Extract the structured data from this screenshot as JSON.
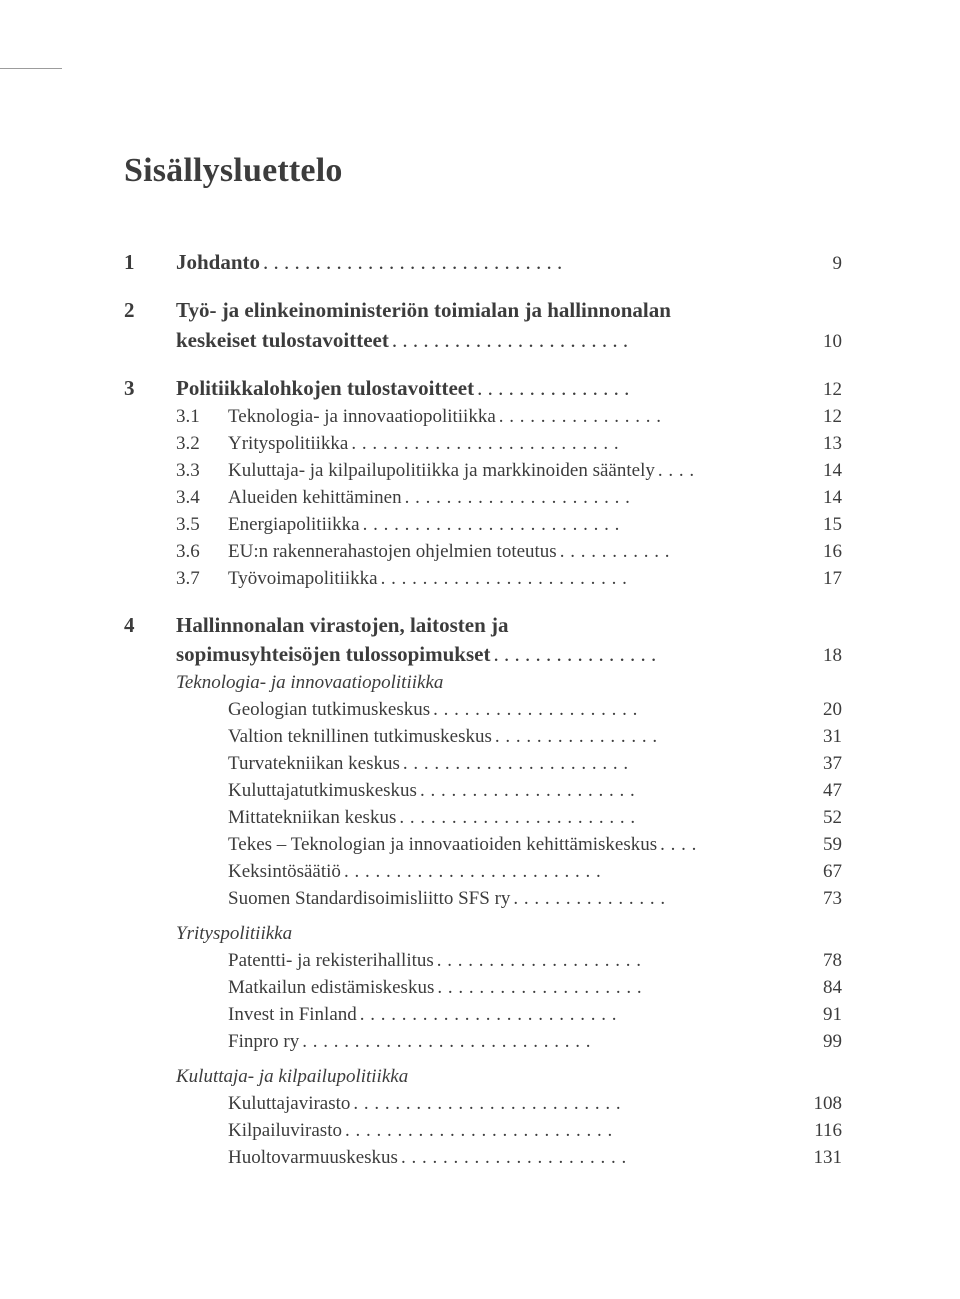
{
  "title": "Sisällysluettelo",
  "colors": {
    "text": "#3c3c3c",
    "background": "#ffffff",
    "header_tick": "#9c9c9c"
  },
  "typography": {
    "title_fontsize_pt": 26,
    "section_fontsize_pt": 16,
    "body_fontsize_pt": 14,
    "font_family": "Times New Roman"
  },
  "sections": [
    {
      "number": "1",
      "label": "Johdanto",
      "page": "9",
      "dots": ". . . . . . . . . . . . . . . . . . . . . . . . . . . . .",
      "subs": []
    },
    {
      "number": "2",
      "label_line1": "Työ- ja elinkeinoministeriön toimialan ja hallinnonalan",
      "label_line2": "keskeiset tulostavoitteet",
      "page": "10",
      "dots": ". . . . . . . . . . . . . . . . . . . . . . .",
      "subs": []
    },
    {
      "number": "3",
      "label": "Politiikkalohkojen tulostavoitteet",
      "page": "12",
      "dots": ". . . . . . . . . . . . . . .",
      "subs": [
        {
          "num": "3.1",
          "label": "Teknologia- ja innovaatiopolitiikka",
          "dots": ". . . . . . . . . . . . . . . .",
          "page": "12"
        },
        {
          "num": "3.2",
          "label": "Yrityspolitiikka",
          "dots": ". . . . . . . . . . . . . . . . . . . . . . . . . .",
          "page": "13"
        },
        {
          "num": "3.3",
          "label": "Kuluttaja- ja kilpailupolitiikka ja markkinoiden sääntely",
          "dots": ". . . .",
          "page": "14"
        },
        {
          "num": "3.4",
          "label": "Alueiden kehittäminen",
          "dots": ". . . . . . . . . . . . . . . . . . . . . .",
          "page": "14"
        },
        {
          "num": "3.5",
          "label": "Energiapolitiikka",
          "dots": ". . . . . . . . . . . . . . . . . . . . . . . . .",
          "page": "15"
        },
        {
          "num": "3.6",
          "label": "EU:n rakennerahastojen ohjelmien toteutus",
          "dots": ". . . . . . . . . . .",
          "page": "16"
        },
        {
          "num": "3.7",
          "label": "Työvoimapolitiikka",
          "dots": ". . . . . . . . . . . . . . . . . . . . . . . .",
          "page": "17"
        }
      ]
    },
    {
      "number": "4",
      "label_line1": "Hallinnonalan virastojen, laitosten ja",
      "label_line2": "sopimusyhteisöjen tulossopimukset",
      "page": "18",
      "dots": ". . . . . . . . . . . . . . . .",
      "groups": [
        {
          "heading": "Teknologia- ja innovaatiopolitiikka",
          "items": [
            {
              "label": "Geologian tutkimuskeskus",
              "dots": ". . . . . . . . . . . . . . . . . . . .",
              "page": "20"
            },
            {
              "label": "Valtion teknillinen tutkimuskeskus",
              "dots": ". . . . . . . . . . . . . . . .",
              "page": "31"
            },
            {
              "label": "Turvatekniikan keskus",
              "dots": ". . . . . . . . . . . . . . . . . . . . . .",
              "page": "37"
            },
            {
              "label": "Kuluttajatutkimuskeskus",
              "dots": ". . . . . . . . . . . . . . . . . . . . .",
              "page": "47"
            },
            {
              "label": "Mittatekniikan keskus",
              "dots": ". . . . . . . . . . . . . . . . . . . . . . .",
              "page": "52"
            },
            {
              "label": "Tekes – Teknologian ja innovaatioiden kehittämiskeskus",
              "dots": ". . . .",
              "page": "59"
            },
            {
              "label": "Keksintösäätiö",
              "dots": "  . . . . . . . . . . . . . . . . . . . . . . . . .",
              "page": "67"
            },
            {
              "label": "Suomen Standardisoimisliitto SFS ry",
              "dots": ". . . . . . . . . . . . . . .",
              "page": "73"
            }
          ]
        },
        {
          "heading": "Yrityspolitiikka",
          "items": [
            {
              "label": "Patentti- ja rekisterihallitus",
              "dots": ". . . . . . . . . . . . . . . . . . . .",
              "page": "78"
            },
            {
              "label": "Matkailun edistämiskeskus",
              "dots": ". . . . . . . . . . . . . . . . . . . .",
              "page": "84"
            },
            {
              "label": "Invest in Finland",
              "dots": "  . . . . . . . . . . . . . . . . . . . . . . . . .",
              "page": "91"
            },
            {
              "label": "Finpro ry",
              "dots": "  . . . . . . . . . . . . . . . . . . . . . . . . . . . .",
              "page": "99"
            }
          ]
        },
        {
          "heading": "Kuluttaja- ja kilpailupolitiikka",
          "items": [
            {
              "label": "Kuluttajavirasto",
              "dots": ". . . . . . . . . . . . . . . . . . . . . . . . . .",
              "page": "108"
            },
            {
              "label": "Kilpailuvirasto",
              "dots": ". . . . . . . . . . . . . . . . . . . . . . . . . .",
              "page": "116"
            },
            {
              "label": "Huoltovarmuuskeskus",
              "dots": ". . . . . . . . . . . . . . . . . . . . . .",
              "page": "131"
            }
          ]
        }
      ]
    }
  ]
}
